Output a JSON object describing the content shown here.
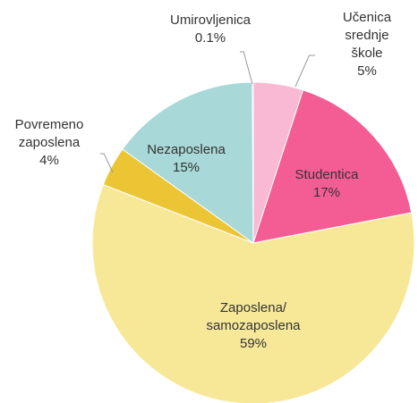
{
  "chart_data": {
    "type": "pie",
    "categories": [
      "Učenica\nsrednje škole",
      "Studentica",
      "Zaposlena/\nsamozaposlena",
      "Povremeno\nzaposlena",
      "Nezaposlena",
      "Umirovljenica"
    ],
    "values": [
      5,
      17,
      59,
      4,
      15,
      0.1
    ],
    "value_labels": [
      "5%",
      "17%",
      "59%",
      "4%",
      "15%",
      "0.1%"
    ],
    "colors": [
      "#f9b8d3",
      "#f45d94",
      "#f7e898",
      "#ecc535",
      "#a8d8d8",
      "#9e9e9e"
    ]
  }
}
